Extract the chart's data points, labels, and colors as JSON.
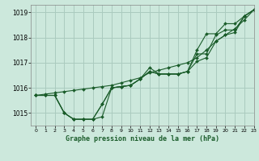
{
  "title": "Graphe pression niveau de la mer (hPa)",
  "background_color": "#cce8dc",
  "grid_color": "#aacbbf",
  "line_color": "#1a5c2a",
  "xlim": [
    -0.5,
    23
  ],
  "ylim": [
    1014.5,
    1019.3
  ],
  "yticks": [
    1015,
    1016,
    1017,
    1018,
    1019
  ],
  "xticks": [
    0,
    1,
    2,
    3,
    4,
    5,
    6,
    7,
    8,
    9,
    10,
    11,
    12,
    13,
    14,
    15,
    16,
    17,
    18,
    19,
    20,
    21,
    22,
    23
  ],
  "series": [
    [
      1015.7,
      1015.7,
      1015.7,
      1015.0,
      1014.75,
      1014.75,
      1014.75,
      1014.85,
      1016.0,
      1016.05,
      1016.1,
      1016.35,
      1016.65,
      1016.55,
      1016.55,
      1016.55,
      1016.65,
      1017.35,
      1017.35,
      1018.1,
      1018.3,
      1018.3,
      1018.85,
      1019.1
    ],
    [
      1015.7,
      1015.7,
      1015.7,
      1015.0,
      1014.75,
      1014.75,
      1014.75,
      1015.35,
      1016.0,
      1016.05,
      1016.1,
      1016.35,
      1016.65,
      1016.55,
      1016.55,
      1016.55,
      1016.65,
      1017.05,
      1017.2,
      1017.85,
      1018.1,
      1018.2,
      1018.85,
      1019.1
    ],
    [
      1015.7,
      1015.7,
      1015.7,
      1015.0,
      1014.75,
      1014.75,
      1014.75,
      1015.35,
      1016.0,
      1016.05,
      1016.1,
      1016.35,
      1016.8,
      1016.55,
      1016.55,
      1016.55,
      1016.65,
      1017.5,
      1018.15,
      1018.15,
      1018.55,
      1018.55,
      1018.85,
      1019.1
    ],
    [
      1015.7,
      1015.75,
      1015.8,
      1015.85,
      1015.9,
      1015.95,
      1016.0,
      1016.05,
      1016.1,
      1016.2,
      1016.3,
      1016.4,
      1016.6,
      1016.7,
      1016.8,
      1016.9,
      1017.0,
      1017.2,
      1017.5,
      1017.85,
      1018.1,
      1018.35,
      1018.7,
      1019.1
    ]
  ]
}
